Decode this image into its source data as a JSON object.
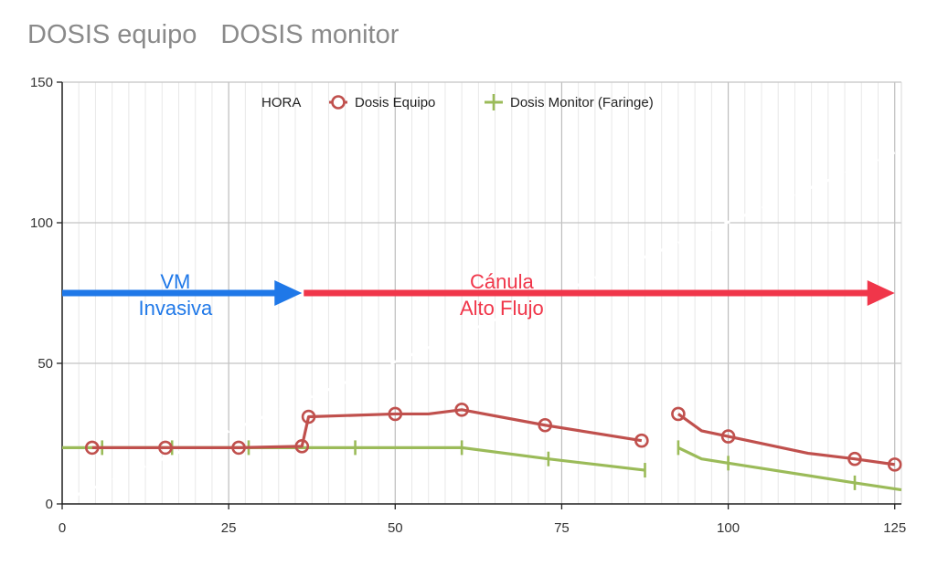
{
  "title": "DOSIS equipo",
  "subtitle": "DOSIS monitor",
  "chart_data": {
    "type": "line",
    "xlim": [
      0,
      126
    ],
    "ylim": [
      0,
      150
    ],
    "x_ticks": [
      0,
      25,
      50,
      75,
      100,
      125
    ],
    "y_ticks": [
      0,
      50,
      100,
      150
    ],
    "vertical_gridlines": "dense",
    "legend_position": "top",
    "legend": [
      "HORA",
      "Dosis Equipo",
      "Dosis Monitor  (Faringe)"
    ],
    "colors": {
      "hora": "#ffffff",
      "equipo": "#c0504d",
      "monitor": "#9bbb59",
      "vm_arrow": "#1f78e8",
      "canula_arrow": "#f0364a"
    },
    "series": [
      {
        "name": "HORA",
        "segments": [
          [
            [
              2,
              3
            ],
            [
              125,
              125
            ]
          ]
        ]
      },
      {
        "name": "Dosis Equipo",
        "segments": [
          [
            [
              4.5,
              20
            ],
            [
              15.5,
              20
            ],
            [
              26.5,
              20
            ],
            [
              36,
              20.5
            ],
            [
              37,
              31
            ],
            [
              50,
              32
            ],
            [
              55,
              32
            ],
            [
              60,
              33.5
            ],
            [
              72.5,
              28
            ],
            [
              87,
              22.5
            ]
          ],
          [
            [
              92.5,
              32
            ],
            [
              96,
              26
            ],
            [
              100,
              24
            ],
            [
              112,
              18
            ],
            [
              119,
              16
            ],
            [
              125,
              14
            ]
          ]
        ],
        "markers": [
          [
            4.5,
            20
          ],
          [
            15.5,
            20
          ],
          [
            26.5,
            20
          ],
          [
            36,
            20.5
          ],
          [
            37,
            31
          ],
          [
            50,
            32
          ],
          [
            60,
            33.5
          ],
          [
            72.5,
            28
          ],
          [
            87,
            22.5
          ],
          [
            92.5,
            32
          ],
          [
            100,
            24
          ],
          [
            119,
            16
          ],
          [
            125,
            14
          ]
        ]
      },
      {
        "name": "Dosis Monitor  (Faringe)",
        "segments": [
          [
            [
              0,
              20
            ],
            [
              6,
              20
            ],
            [
              16.5,
              20
            ],
            [
              28,
              20
            ],
            [
              44,
              20
            ],
            [
              60,
              20
            ],
            [
              73,
              16
            ],
            [
              87.5,
              12
            ]
          ],
          [
            [
              92.5,
              20
            ],
            [
              96,
              16
            ],
            [
              100,
              14.5
            ],
            [
              119,
              7.5
            ],
            [
              126,
              5
            ]
          ]
        ],
        "markers": [
          [
            6,
            20
          ],
          [
            16.5,
            20
          ],
          [
            28,
            20
          ],
          [
            44,
            20
          ],
          [
            60,
            20
          ],
          [
            73,
            16
          ],
          [
            87.5,
            12
          ],
          [
            92.5,
            20
          ],
          [
            100,
            14.5
          ],
          [
            119,
            7.5
          ]
        ]
      }
    ],
    "annotations": [
      {
        "lines": [
          "VM",
          "Invasiva"
        ],
        "from": [
          0,
          75
        ],
        "to": [
          36,
          75
        ],
        "text_x": 17,
        "color_key": "vm_arrow"
      },
      {
        "lines": [
          "Cánula",
          "Alto Flujo"
        ],
        "from": [
          36,
          75
        ],
        "to": [
          125,
          75
        ],
        "text_x": 66,
        "color_key": "canula_arrow"
      }
    ]
  }
}
